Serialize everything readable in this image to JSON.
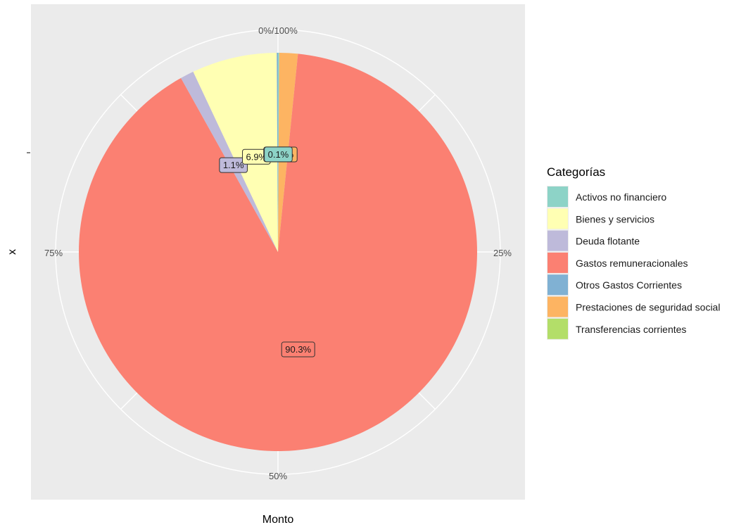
{
  "chart_data": {
    "type": "pie",
    "xlabel": "Monto",
    "ylabel": "x",
    "y_tick_labels": [
      ""
    ],
    "angle_tick_labels": [
      "0%/100%",
      "25%",
      "50%",
      "75%"
    ],
    "legend_title": "Categorías",
    "legend_position": "right",
    "grid": true,
    "slices": [
      {
        "name": "Activos no financiero",
        "value": 0.1,
        "label": "0.1%",
        "color": "#8DD3C7"
      },
      {
        "name": "Prestaciones de seguridad social",
        "value": 1.5,
        "label": "1.5%",
        "color": "#FDB462"
      },
      {
        "name": "Gastos remuneracionales",
        "value": 90.3,
        "label": "90.3%",
        "color": "#FB8072"
      },
      {
        "name": "Deuda flotante",
        "value": 1.1,
        "label": "1.1%",
        "color": "#BEBADA"
      },
      {
        "name": "Bienes y servicios",
        "value": 6.9,
        "label": "6.9%",
        "color": "#FFFFB3"
      },
      {
        "name": "Otros Gastos Corrientes",
        "value": 0.1,
        "label": "0.1%",
        "color": "#80B1D3"
      }
    ],
    "legend_items": [
      {
        "name": "Activos no financiero",
        "color": "#8DD3C7"
      },
      {
        "name": "Bienes y servicios",
        "color": "#FFFFB3"
      },
      {
        "name": "Deuda flotante",
        "color": "#BEBADA"
      },
      {
        "name": "Gastos remuneracionales",
        "color": "#FB8072"
      },
      {
        "name": "Otros Gastos Corrientes",
        "color": "#80B1D3"
      },
      {
        "name": "Prestaciones de seguridad social",
        "color": "#FDB462"
      },
      {
        "name": "Transferencias corrientes",
        "color": "#B3DE69"
      }
    ]
  }
}
